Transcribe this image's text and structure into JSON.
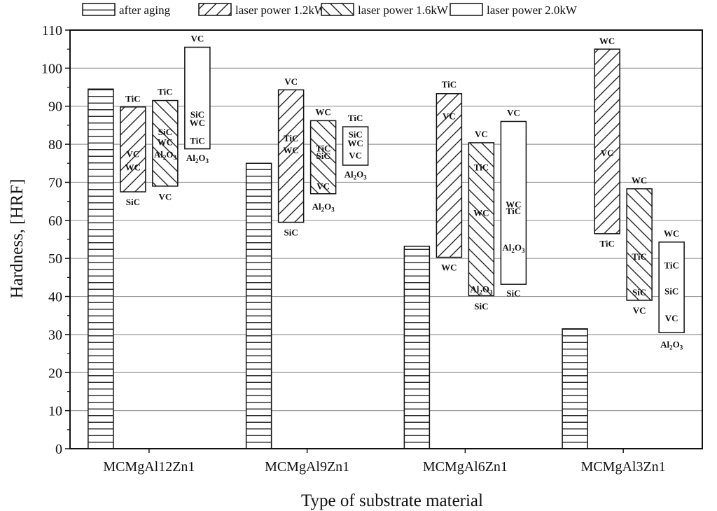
{
  "chart_data": {
    "type": "bar",
    "xlabel": "Type of substrate material",
    "ylabel": "Hardness, [HRF]",
    "ylim": [
      0,
      110
    ],
    "yticks": [
      0,
      10,
      20,
      30,
      40,
      50,
      60,
      70,
      80,
      90,
      100,
      110
    ],
    "grid": "horizontal",
    "legend_position": "top",
    "categories": [
      "MCMgAl12Zn1",
      "MCMgAl9Zn1",
      "MCMgAl6Zn1",
      "MCMgAl3Zn1"
    ],
    "series": [
      {
        "name": "after aging",
        "pattern": "horizontal",
        "bars": [
          {
            "low": 0,
            "high": 94.5
          },
          {
            "low": 0,
            "high": 75.0
          },
          {
            "low": 0,
            "high": 53.2
          },
          {
            "low": 0,
            "high": 31.5
          }
        ]
      },
      {
        "name": "laser power 1.2kW",
        "pattern": "diagonal-up",
        "bars": [
          {
            "low": 67.5,
            "high": 89.8,
            "labels": [
              {
                "text": "TiC",
                "y": 92.1
              },
              {
                "text": "VC",
                "y": 77.5
              },
              {
                "text": "WC",
                "y": 74.0
              },
              {
                "text": "SiC",
                "y": 64.9
              }
            ]
          },
          {
            "low": 59.5,
            "high": 94.3,
            "labels": [
              {
                "text": "VC",
                "y": 96.6
              },
              {
                "text": "TiC",
                "y": 81.7
              },
              {
                "text": "WC",
                "y": 78.5
              },
              {
                "text": "SiC",
                "y": 56.9
              }
            ]
          },
          {
            "low": 50.3,
            "high": 93.3,
            "labels": [
              {
                "text": "TiC",
                "y": 95.8
              },
              {
                "text": "VC",
                "y": 87.5
              },
              {
                "text": "WC",
                "y": 47.7
              }
            ]
          },
          {
            "low": 56.5,
            "high": 105.0,
            "labels": [
              {
                "text": "WC",
                "y": 107.2
              },
              {
                "text": "VC",
                "y": 77.8
              },
              {
                "text": "TiC",
                "y": 54.0
              }
            ]
          }
        ]
      },
      {
        "name": "laser power 1.6kW",
        "pattern": "diagonal-down",
        "bars": [
          {
            "low": 69.0,
            "high": 91.5,
            "labels": [
              {
                "text": "TiC",
                "y": 93.9
              },
              {
                "text": "SiC",
                "y": 83.3
              },
              {
                "text": "WC",
                "y": 80.7
              },
              {
                "text": "Al2O3",
                "y": 77.4
              },
              {
                "text": "VC",
                "y": 66.3
              }
            ]
          },
          {
            "low": 67.0,
            "high": 86.2,
            "labels": [
              {
                "text": "WC",
                "y": 88.6
              },
              {
                "text": "TiC",
                "y": 79.0
              },
              {
                "text": "SiC",
                "y": 77.1
              },
              {
                "text": "VC",
                "y": 69.1
              },
              {
                "text": "Al2O3",
                "y": 63.7
              }
            ]
          },
          {
            "low": 40.2,
            "high": 80.4,
            "labels": [
              {
                "text": "VC",
                "y": 82.8
              },
              {
                "text": "TiC",
                "y": 74.0
              },
              {
                "text": "WC",
                "y": 62.1
              },
              {
                "text": "Al2O3",
                "y": 42.0
              },
              {
                "text": "SiC",
                "y": 37.5
              }
            ]
          },
          {
            "low": 39.0,
            "high": 68.3,
            "labels": [
              {
                "text": "WC",
                "y": 70.6
              },
              {
                "text": "TiC",
                "y": 50.6
              },
              {
                "text": "SiC",
                "y": 41.2
              },
              {
                "text": "VC",
                "y": 36.4
              }
            ]
          }
        ]
      },
      {
        "name": "laser power 2.0kW",
        "pattern": "none",
        "bars": [
          {
            "low": 78.8,
            "high": 105.5,
            "labels": [
              {
                "text": "VC",
                "y": 107.9
              },
              {
                "text": "SiC",
                "y": 87.9
              },
              {
                "text": "WC",
                "y": 85.7
              },
              {
                "text": "TiC",
                "y": 81.0
              },
              {
                "text": "Al2O3",
                "y": 76.5
              }
            ]
          },
          {
            "low": 74.5,
            "high": 84.6,
            "labels": [
              {
                "text": "TiC",
                "y": 87.0
              },
              {
                "text": "SiC",
                "y": 82.7
              },
              {
                "text": "WC",
                "y": 80.4
              },
              {
                "text": "VC",
                "y": 77.2
              },
              {
                "text": "Al2O3",
                "y": 72.2
              }
            ]
          },
          {
            "low": 43.2,
            "high": 86.0,
            "labels": [
              {
                "text": "VC",
                "y": 88.4
              },
              {
                "text": "WC",
                "y": 64.3
              },
              {
                "text": "TiC",
                "y": 62.5
              },
              {
                "text": "Al2O3",
                "y": 53.0
              },
              {
                "text": "SiC",
                "y": 40.9
              }
            ]
          },
          {
            "low": 30.5,
            "high": 54.3,
            "labels": [
              {
                "text": "WC",
                "y": 56.7
              },
              {
                "text": "TiC",
                "y": 48.3
              },
              {
                "text": "SiC",
                "y": 41.5
              },
              {
                "text": "VC",
                "y": 34.4
              },
              {
                "text": "Al2O3",
                "y": 27.5
              }
            ]
          }
        ]
      }
    ]
  }
}
